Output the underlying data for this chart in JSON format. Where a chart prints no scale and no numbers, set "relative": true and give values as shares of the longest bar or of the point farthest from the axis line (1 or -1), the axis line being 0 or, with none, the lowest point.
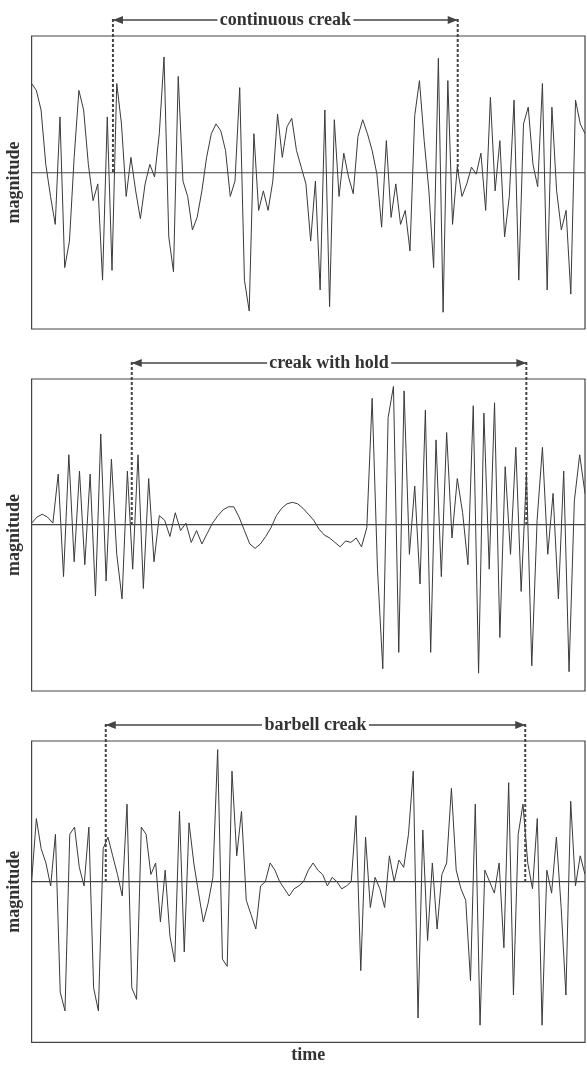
{
  "chart_data": [
    {
      "type": "line",
      "relative": true,
      "ylabel": "magnitude",
      "color": "#3a3a3a",
      "tick_labels": false,
      "annotations": [
        "continuous creak"
      ],
      "categories": [
        null,
        null,
        null,
        null,
        null,
        null,
        null,
        null,
        null,
        null,
        null,
        null,
        null,
        null,
        null,
        null,
        null,
        null,
        null,
        null,
        null,
        null,
        null,
        null,
        null,
        null,
        null,
        null,
        null,
        null,
        null,
        null,
        null,
        null,
        null,
        null,
        null,
        null,
        null,
        null,
        null,
        null,
        null,
        null,
        null,
        null,
        null,
        null,
        null,
        null,
        null,
        null,
        null,
        null,
        null,
        null,
        null,
        null,
        null,
        null,
        null,
        null,
        null,
        null,
        null,
        null,
        null,
        null,
        null,
        null,
        null,
        null,
        null,
        null,
        null,
        null,
        null,
        null,
        null,
        null,
        null,
        null,
        null,
        null,
        null,
        null,
        null,
        null,
        null,
        null,
        null,
        null,
        null,
        null,
        null,
        null,
        null,
        null,
        null,
        null,
        null,
        null,
        null,
        null,
        null,
        null,
        null,
        null,
        null,
        null,
        null,
        null,
        null,
        null,
        null,
        null,
        null,
        null
      ],
      "values": [
        0.64,
        0.59,
        0.45,
        0.06,
        -0.17,
        -0.37,
        0.4,
        -0.68,
        -0.49,
        0.11,
        0.59,
        0.45,
        0.06,
        -0.2,
        -0.08,
        -0.77,
        0.4,
        -0.7,
        0.64,
        0.35,
        -0.17,
        0.11,
        -0.13,
        -0.33,
        -0.08,
        0.06,
        -0.03,
        0.28,
        0.83,
        -0.46,
        -0.71,
        0.69,
        -0.06,
        -0.17,
        -0.41,
        -0.32,
        -0.13,
        0.11,
        0.28,
        0.35,
        0.3,
        0.16,
        -0.17,
        -0.06,
        0.61,
        -0.77,
        -0.99,
        0.28,
        -0.27,
        -0.13,
        -0.27,
        -0.06,
        0.42,
        0.11,
        0.33,
        0.39,
        0.16,
        0.04,
        -0.08,
        -0.49,
        -0.06,
        -0.84,
        0.45,
        -0.96,
        0.38,
        -0.17,
        0.14,
        -0.03,
        -0.15,
        0.26,
        0.38,
        0.28,
        0.16,
        -0.01,
        -0.39,
        0.23,
        -0.32,
        -0.08,
        -0.37,
        -0.27,
        -0.56,
        0.41,
        0.66,
        0.23,
        -0.13,
        -0.68,
        0.82,
        -1,
        0.66,
        -0.37,
        0.04,
        -0.17,
        -0.08,
        0.04,
        -0.01,
        0.14,
        -0.27,
        0.54,
        -0.13,
        0.23,
        -0.46,
        -0.17,
        0.52,
        -0.77,
        0.35,
        0.47,
        0.06,
        -0.1,
        0.64,
        -0.84,
        0.47,
        -0.13,
        -0.41,
        -0.27,
        -0.87,
        0.52,
        0.35,
        0.28
      ]
    },
    {
      "type": "line",
      "relative": true,
      "ylabel": "magnitude",
      "color": "#3a3a3a",
      "tick_labels": false,
      "annotations": [
        "creak with hold"
      ],
      "categories": [
        null,
        null,
        null,
        null,
        null,
        null,
        null,
        null,
        null,
        null,
        null,
        null,
        null,
        null,
        null,
        null,
        null,
        null,
        null,
        null,
        null,
        null,
        null,
        null,
        null,
        null,
        null,
        null,
        null,
        null,
        null,
        null,
        null,
        null,
        null,
        null,
        null,
        null,
        null,
        null,
        null,
        null,
        null,
        null,
        null,
        null,
        null,
        null,
        null,
        null,
        null,
        null,
        null,
        null,
        null,
        null,
        null,
        null,
        null,
        null,
        null,
        null,
        null,
        null,
        null,
        null,
        null,
        null,
        null,
        null,
        null,
        null,
        null,
        null,
        null,
        null,
        null,
        null,
        null,
        null,
        null,
        null,
        null,
        null,
        null,
        null,
        null,
        null,
        null,
        null,
        null,
        null,
        null,
        null,
        null,
        null,
        null,
        null,
        null,
        null,
        null,
        null,
        null,
        null,
        null
      ],
      "values": [
        0.01,
        0.05,
        0.07,
        0.05,
        0.01,
        0.34,
        -0.35,
        0.47,
        -0.25,
        0.36,
        -0.27,
        0.34,
        -0.48,
        0.61,
        -0.38,
        0.44,
        -0.2,
        -0.5,
        0.36,
        -0.3,
        0.47,
        -0.43,
        0.31,
        -0.25,
        0.06,
        0.03,
        -0.08,
        0.08,
        -0.04,
        0.01,
        -0.12,
        -0.04,
        -0.13,
        -0.06,
        0.01,
        0.06,
        0.1,
        0.12,
        0.12,
        0.05,
        -0.04,
        -0.13,
        -0.16,
        -0.13,
        -0.08,
        -0.02,
        0.06,
        0.11,
        0.14,
        0.15,
        0.14,
        0.11,
        0.07,
        0.03,
        -0.03,
        -0.07,
        -0.09,
        -0.12,
        -0.15,
        -0.11,
        -0.12,
        -0.09,
        -0.15,
        -0.02,
        0.85,
        -0.3,
        -0.97,
        0.72,
        0.93,
        -0.86,
        0.9,
        -0.2,
        0.26,
        -0.4,
        0.77,
        -0.86,
        0.57,
        -0.35,
        0.62,
        -0.09,
        0.31,
        0.08,
        -0.27,
        0.8,
        -1,
        0.75,
        -0.3,
        0.82,
        -0.76,
        0.39,
        -0.2,
        0.52,
        -0.45,
        0.34,
        -0.95,
        0.03,
        0.52,
        -0.2,
        0.21,
        -0.5,
        0.36,
        -0.99,
        0.16,
        0.47,
        0.21
      ]
    },
    {
      "type": "line",
      "relative": true,
      "ylabel": "magnitude",
      "xlabel": "time",
      "color": "#3a3a3a",
      "tick_labels": false,
      "annotations": [
        "barbell creak"
      ],
      "categories": [
        null,
        null,
        null,
        null,
        null,
        null,
        null,
        null,
        null,
        null,
        null,
        null,
        null,
        null,
        null,
        null,
        null,
        null,
        null,
        null,
        null,
        null,
        null,
        null,
        null,
        null,
        null,
        null,
        null,
        null,
        null,
        null,
        null,
        null,
        null,
        null,
        null,
        null,
        null,
        null,
        null,
        null,
        null,
        null,
        null,
        null,
        null,
        null,
        null,
        null,
        null,
        null,
        null,
        null,
        null,
        null,
        null,
        null,
        null,
        null,
        null,
        null,
        null,
        null,
        null,
        null,
        null,
        null,
        null,
        null,
        null,
        null,
        null,
        null,
        null,
        null,
        null,
        null,
        null,
        null,
        null,
        null,
        null,
        null,
        null,
        null,
        null,
        null,
        null,
        null,
        null,
        null,
        null,
        null,
        null,
        null,
        null,
        null,
        null,
        null,
        null,
        null,
        null,
        null,
        null,
        null,
        null,
        null,
        null,
        null,
        null,
        null,
        null,
        null,
        null,
        null,
        null
      ],
      "values": [
        0,
        0.44,
        0.23,
        0.13,
        -0.03,
        0.33,
        -0.77,
        -0.9,
        0.33,
        0.38,
        0.1,
        -0.03,
        0.38,
        -0.74,
        -0.9,
        0.23,
        0.31,
        0.18,
        0.05,
        -0.1,
        0.54,
        -0.74,
        -0.82,
        0.38,
        0.33,
        0.05,
        0.13,
        -0.28,
        0.08,
        -0.38,
        -0.56,
        0.49,
        -0.49,
        0.41,
        0.13,
        -0.08,
        -0.28,
        -0.15,
        0.03,
        0.92,
        -0.54,
        -0.59,
        0.77,
        0.18,
        0.49,
        -0.13,
        -0.23,
        -0.33,
        -0.03,
        0,
        0.13,
        0.08,
        0,
        -0.05,
        -0.1,
        -0.05,
        -0.03,
        0,
        0.08,
        0.13,
        0.08,
        0.05,
        -0.03,
        0.03,
        0,
        -0.05,
        -0.03,
        0,
        0.46,
        -0.62,
        0.31,
        -0.18,
        0.03,
        -0.05,
        -0.18,
        0.18,
        0,
        0.15,
        0.1,
        0.33,
        0.77,
        -0.95,
        0.36,
        -0.41,
        0.13,
        -0.33,
        0.05,
        0.13,
        0.65,
        0.08,
        -0.05,
        -0.13,
        -0.69,
        0.54,
        -1,
        0.08,
        0,
        -0.08,
        0.13,
        -0.46,
        0.69,
        -0.79,
        0.33,
        0.54,
        0.13,
        -0.05,
        0.44,
        -1,
        0.08,
        -0.08,
        0.31,
        -0.18,
        -0.79,
        0.56,
        -0.03,
        0.18,
        0.05
      ]
    }
  ]
}
